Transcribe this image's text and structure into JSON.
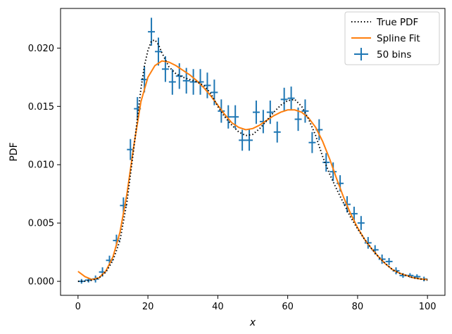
{
  "chart_data": {
    "type": "line",
    "xlabel": "x",
    "ylabel": "PDF",
    "xlim": [
      -5,
      105
    ],
    "ylim": [
      -0.0012,
      0.0234
    ],
    "xticks": [
      0,
      20,
      40,
      60,
      80,
      100
    ],
    "yticks": [
      0.0,
      0.005,
      0.01,
      0.015,
      0.02
    ],
    "ytick_labels": [
      "0.000",
      "0.005",
      "0.010",
      "0.015",
      "0.020"
    ],
    "legend_position": "top-right",
    "grid": false,
    "series": [
      {
        "name": "True PDF",
        "kind": "line",
        "style": "dotted",
        "color": "#000000",
        "x": [
          0,
          2,
          4,
          6,
          8,
          10,
          12,
          14,
          16,
          18,
          19,
          20,
          21,
          22,
          23,
          24,
          26,
          28,
          30,
          32,
          34,
          36,
          38,
          40,
          42,
          44,
          46,
          48,
          50,
          52,
          54,
          56,
          58,
          60,
          62,
          64,
          66,
          68,
          70,
          72,
          74,
          76,
          78,
          80,
          82,
          84,
          86,
          88,
          90,
          92,
          94,
          96,
          98,
          100
        ],
        "y": [
          0.0,
          2e-05,
          0.0001,
          0.0003,
          0.0008,
          0.0018,
          0.0035,
          0.0068,
          0.0115,
          0.0165,
          0.0185,
          0.0198,
          0.0206,
          0.0207,
          0.0203,
          0.0196,
          0.0184,
          0.0178,
          0.0175,
          0.0173,
          0.0171,
          0.0168,
          0.0161,
          0.015,
          0.0141,
          0.0134,
          0.0128,
          0.0125,
          0.0126,
          0.0131,
          0.0138,
          0.0145,
          0.0151,
          0.0155,
          0.0156,
          0.015,
          0.0139,
          0.0125,
          0.0107,
          0.0092,
          0.0079,
          0.0067,
          0.0055,
          0.0045,
          0.0036,
          0.0028,
          0.0021,
          0.0015,
          0.001,
          0.0007,
          0.0005,
          0.0003,
          0.0002,
          0.0001
        ]
      },
      {
        "name": "Spline Fit",
        "kind": "line",
        "style": "solid",
        "color": "#ff7f0e",
        "x": [
          0,
          2,
          4,
          6,
          8,
          10,
          12,
          14,
          16,
          18,
          20,
          22,
          24,
          26,
          28,
          30,
          32,
          34,
          36,
          38,
          40,
          42,
          44,
          46,
          48,
          50,
          52,
          54,
          56,
          58,
          60,
          62,
          64,
          66,
          68,
          70,
          72,
          74,
          76,
          78,
          80,
          82,
          84,
          86,
          88,
          90,
          92,
          94,
          96,
          98,
          100
        ],
        "y": [
          0.00085,
          0.0004,
          0.00015,
          0.0003,
          0.0009,
          0.0021,
          0.0042,
          0.0075,
          0.0117,
          0.0154,
          0.0175,
          0.0185,
          0.0189,
          0.0188,
          0.0185,
          0.0181,
          0.0177,
          0.0172,
          0.0166,
          0.0159,
          0.0151,
          0.0143,
          0.0136,
          0.0132,
          0.013,
          0.0131,
          0.0134,
          0.0138,
          0.0142,
          0.0145,
          0.0147,
          0.0147,
          0.0145,
          0.014,
          0.0132,
          0.012,
          0.0105,
          0.0088,
          0.0072,
          0.0058,
          0.0046,
          0.0036,
          0.0028,
          0.0021,
          0.0015,
          0.001,
          0.0007,
          0.0005,
          0.0003,
          0.0002,
          0.00015
        ]
      },
      {
        "name": "50 bins",
        "kind": "errorbar",
        "color": "#1f77b4",
        "bin_halfwidth": 1,
        "x": [
          1,
          3,
          5,
          7,
          9,
          11,
          13,
          15,
          17,
          19,
          21,
          23,
          25,
          27,
          29,
          31,
          33,
          35,
          37,
          39,
          41,
          43,
          45,
          47,
          49,
          51,
          53,
          55,
          57,
          59,
          61,
          63,
          65,
          67,
          69,
          71,
          73,
          75,
          77,
          79,
          81,
          83,
          85,
          87,
          89,
          91,
          93,
          95,
          97,
          99
        ],
        "y": [
          0.0,
          0.0001,
          0.0002,
          0.0008,
          0.0018,
          0.0035,
          0.0065,
          0.0113,
          0.0148,
          0.0173,
          0.0214,
          0.0197,
          0.0182,
          0.0171,
          0.0176,
          0.0172,
          0.0171,
          0.0171,
          0.0168,
          0.0162,
          0.0146,
          0.0141,
          0.0141,
          0.0121,
          0.0121,
          0.0145,
          0.0137,
          0.0145,
          0.0128,
          0.0156,
          0.0157,
          0.0139,
          0.0146,
          0.0119,
          0.013,
          0.0102,
          0.0094,
          0.0084,
          0.0066,
          0.0058,
          0.005,
          0.0033,
          0.0027,
          0.0019,
          0.0017,
          0.0009,
          0.0005,
          0.0005,
          0.0004,
          0.0002
        ],
        "yerr": [
          0.0002,
          0.0002,
          0.0003,
          0.0004,
          0.0004,
          0.0005,
          0.0007,
          0.0009,
          0.001,
          0.0011,
          0.0012,
          0.0012,
          0.0011,
          0.0011,
          0.0011,
          0.0011,
          0.0011,
          0.0011,
          0.0011,
          0.0011,
          0.001,
          0.001,
          0.001,
          0.0009,
          0.0009,
          0.001,
          0.001,
          0.001,
          0.0009,
          0.001,
          0.001,
          0.001,
          0.001,
          0.0009,
          0.0009,
          0.0008,
          0.0008,
          0.0007,
          0.0007,
          0.0006,
          0.0006,
          0.0005,
          0.0004,
          0.0004,
          0.0003,
          0.0003,
          0.0002,
          0.0002,
          0.0002,
          0.0002
        ]
      }
    ]
  }
}
